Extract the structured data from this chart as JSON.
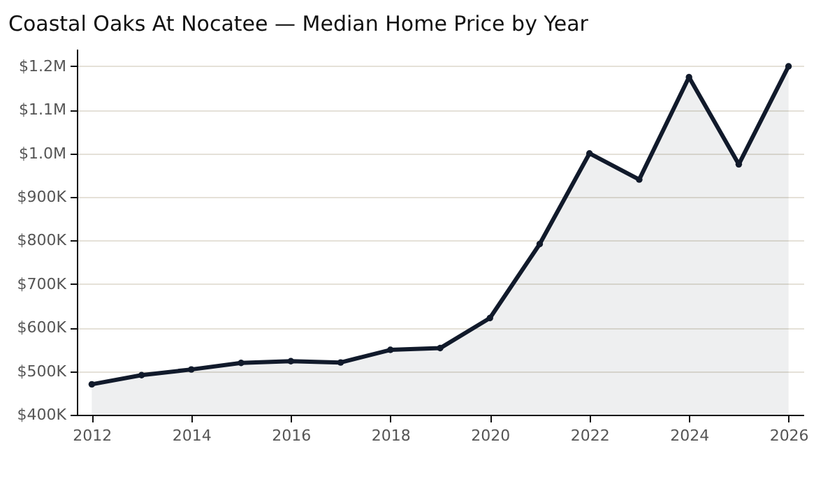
{
  "chart_data": {
    "type": "area",
    "title": "Coastal Oaks At Nocatee — Median Home Price by Year",
    "x": [
      2012,
      2013,
      2014,
      2015,
      2016,
      2017,
      2018,
      2019,
      2020,
      2021,
      2022,
      2023,
      2024,
      2025,
      2026
    ],
    "series": [
      {
        "color": "#111a2b",
        "values": [
          470000,
          491000,
          504000,
          519000,
          523000,
          520000,
          549000,
          553000,
          622000,
          792000,
          1000000,
          940000,
          1175000,
          975000,
          1200000
        ]
      }
    ],
    "xlim": [
      2011.7,
      2026.3
    ],
    "xticks": [
      2012,
      2014,
      2016,
      2018,
      2020,
      2022,
      2024,
      2026
    ],
    "ylim": [
      400000,
      1240000
    ],
    "yticks": [
      {
        "value": 400000,
        "label": "$400K"
      },
      {
        "value": 500000,
        "label": "$500K"
      },
      {
        "value": 600000,
        "label": "$600K"
      },
      {
        "value": 700000,
        "label": "$700K"
      },
      {
        "value": 800000,
        "label": "$800K"
      },
      {
        "value": 900000,
        "label": "$900K"
      },
      {
        "value": 1000000,
        "label": "$1.0M"
      },
      {
        "value": 1100000,
        "label": "$1.1M"
      },
      {
        "value": 1200000,
        "label": "$1.2M"
      }
    ],
    "grid": "y",
    "marker": "circle",
    "line_style": "solid"
  }
}
